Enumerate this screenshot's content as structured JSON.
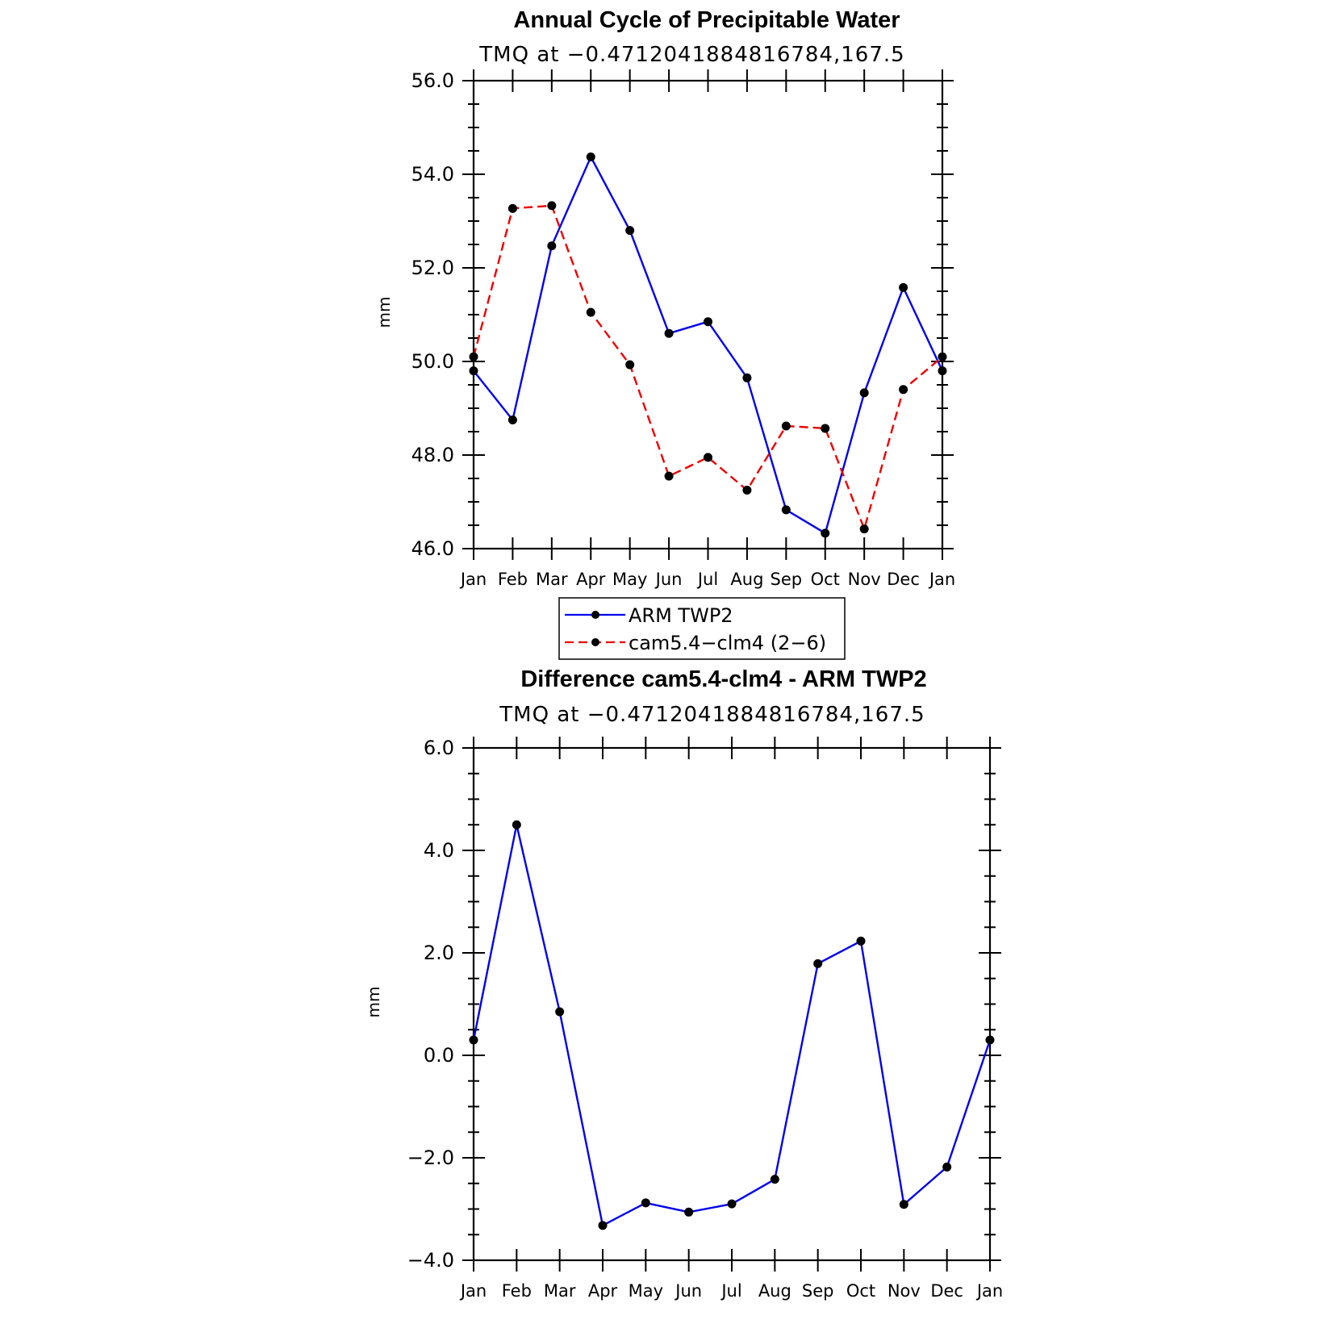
{
  "colors": {
    "blue": "#0000ee",
    "red": "#ee0000",
    "marker": "#000000",
    "axis": "#000000"
  },
  "legend": {
    "placement": "between-panels",
    "entries": [
      {
        "label": "ARM TWP2",
        "color": "#0000ee",
        "dash": "solid"
      },
      {
        "label": "cam5.4−clm4 (2−6)",
        "color": "#ee0000",
        "dash": "dashed"
      }
    ]
  },
  "chart_data": [
    {
      "type": "line",
      "title": "Annual Cycle of Precipitable Water",
      "subtitle": "TMQ at −0.4712041884816784,167.5",
      "xlabel": "",
      "ylabel": "mm",
      "categories": [
        "Jan",
        "Feb",
        "Mar",
        "Apr",
        "May",
        "Jun",
        "Jul",
        "Aug",
        "Sep",
        "Oct",
        "Nov",
        "Dec",
        "Jan"
      ],
      "ylim": [
        46,
        56
      ],
      "yticks": [
        "46.0",
        "48.0",
        "50.0",
        "52.0",
        "54.0",
        "56.0"
      ],
      "yminor_step": 0.5,
      "series": [
        {
          "name": "ARM TWP2",
          "color": "#0000ee",
          "dash": "solid",
          "values": [
            49.8,
            48.75,
            52.47,
            54.37,
            52.8,
            50.6,
            50.85,
            49.65,
            46.83,
            46.33,
            49.33,
            51.58,
            49.8
          ]
        },
        {
          "name": "cam5.4−clm4 (2−6)",
          "color": "#ee0000",
          "dash": "dashed",
          "values": [
            50.1,
            53.27,
            53.33,
            51.05,
            49.93,
            47.55,
            47.95,
            47.25,
            48.62,
            48.57,
            46.42,
            49.4,
            50.1
          ]
        }
      ],
      "grid": false
    },
    {
      "type": "line",
      "title": "Difference cam5.4-clm4 - ARM TWP2",
      "subtitle": "TMQ at −0.4712041884816784,167.5",
      "xlabel": "",
      "ylabel": "mm",
      "categories": [
        "Jan",
        "Feb",
        "Mar",
        "Apr",
        "May",
        "Jun",
        "Jul",
        "Aug",
        "Sep",
        "Oct",
        "Nov",
        "Dec",
        "Jan"
      ],
      "ylim": [
        -4,
        6
      ],
      "yticks": [
        "−4.0",
        "−2.0",
        "0.0",
        "2.0",
        "4.0",
        "6.0"
      ],
      "yminor_step": 0.5,
      "series": [
        {
          "color": "#0000ee",
          "dash": "solid",
          "values": [
            0.3,
            4.5,
            0.85,
            -3.32,
            -2.88,
            -3.06,
            -2.9,
            -2.42,
            1.79,
            2.23,
            -2.91,
            -2.18,
            0.3
          ]
        }
      ],
      "grid": false
    }
  ]
}
